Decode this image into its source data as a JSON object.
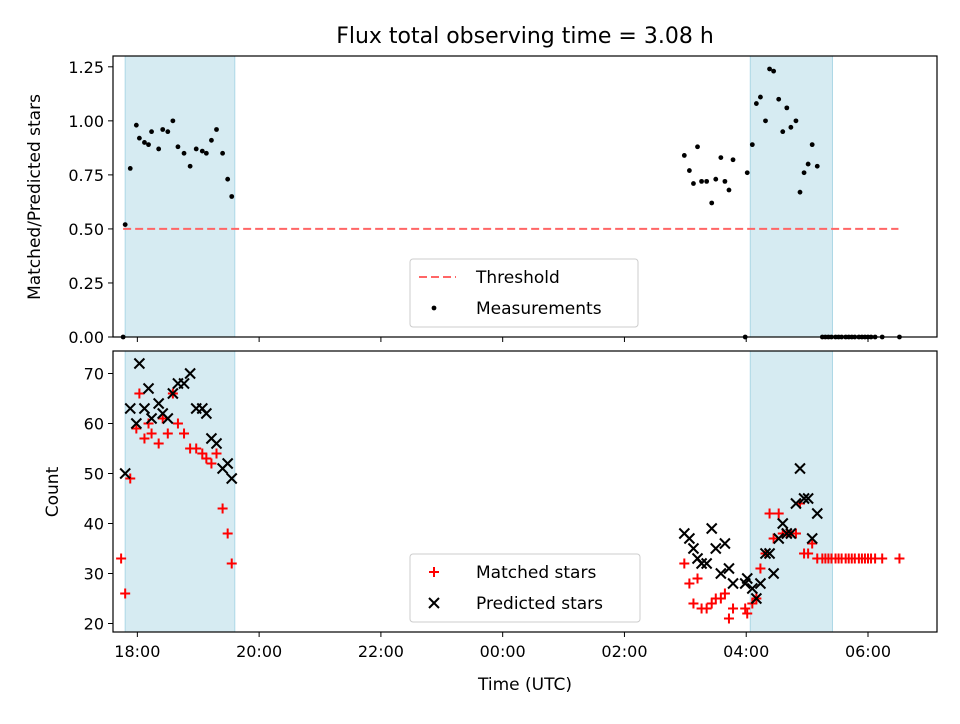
{
  "title": "Flux total observing time = 3.08 h",
  "colors": {
    "band": "#add8e6",
    "matched": "#ff0000",
    "predicted": "#000000",
    "threshold": "#ff6666",
    "measurement": "#000000"
  },
  "chart_data": [
    {
      "type": "scatter",
      "ylabel": "Matched/Predicted stars",
      "ylim": [
        0,
        1.3
      ],
      "yticks": [
        "0.00",
        "0.25",
        "0.50",
        "0.75",
        "1.00",
        "1.25"
      ],
      "ytick_values": [
        0,
        0.25,
        0.5,
        0.75,
        1.0,
        1.25
      ],
      "xlim": [
        "17:36",
        "07:08"
      ],
      "shaded_intervals": [
        [
          "17:48",
          "19:36"
        ],
        [
          "04:04",
          "05:25"
        ]
      ],
      "threshold": {
        "name": "Threshold",
        "value": 0.5,
        "x": [
          "17:46",
          "06:30"
        ]
      },
      "legend": {
        "position": "lower center",
        "entries": [
          "Threshold",
          "Measurements"
        ]
      },
      "series": [
        {
          "name": "Measurements",
          "points": [
            [
              "17:46",
              0.0
            ],
            [
              "17:48",
              0.52
            ],
            [
              "17:53",
              0.78
            ],
            [
              "17:59",
              0.98
            ],
            [
              "18:02",
              0.92
            ],
            [
              "18:07",
              0.9
            ],
            [
              "18:11",
              0.89
            ],
            [
              "18:14",
              0.95
            ],
            [
              "18:21",
              0.87
            ],
            [
              "18:25",
              0.96
            ],
            [
              "18:30",
              0.95
            ],
            [
              "18:35",
              1.0
            ],
            [
              "18:40",
              0.88
            ],
            [
              "18:46",
              0.85
            ],
            [
              "18:52",
              0.79
            ],
            [
              "18:58",
              0.87
            ],
            [
              "19:04",
              0.86
            ],
            [
              "19:08",
              0.85
            ],
            [
              "19:13",
              0.91
            ],
            [
              "19:18",
              0.96
            ],
            [
              "19:24",
              0.85
            ],
            [
              "19:29",
              0.73
            ],
            [
              "19:33",
              0.65
            ],
            [
              "02:59",
              0.84
            ],
            [
              "03:04",
              0.77
            ],
            [
              "03:08",
              0.71
            ],
            [
              "03:12",
              0.88
            ],
            [
              "03:16",
              0.72
            ],
            [
              "03:21",
              0.72
            ],
            [
              "03:26",
              0.62
            ],
            [
              "03:30",
              0.73
            ],
            [
              "03:35",
              0.83
            ],
            [
              "03:39",
              0.72
            ],
            [
              "03:43",
              0.68
            ],
            [
              "03:47",
              0.82
            ],
            [
              "03:59",
              0.0
            ],
            [
              "04:01",
              0.76
            ],
            [
              "04:06",
              0.89
            ],
            [
              "04:10",
              1.08
            ],
            [
              "04:14",
              1.11
            ],
            [
              "04:19",
              1.0
            ],
            [
              "04:23",
              1.24
            ],
            [
              "04:27",
              1.23
            ],
            [
              "04:32",
              1.1
            ],
            [
              "04:36",
              0.95
            ],
            [
              "04:40",
              1.06
            ],
            [
              "04:44",
              0.97
            ],
            [
              "04:49",
              1.0
            ],
            [
              "04:53",
              0.67
            ],
            [
              "04:57",
              0.76
            ],
            [
              "05:01",
              0.8
            ],
            [
              "05:05",
              0.89
            ],
            [
              "05:10",
              0.79
            ],
            [
              "05:15",
              0.0
            ],
            [
              "05:18",
              0.0
            ],
            [
              "05:21",
              0.0
            ],
            [
              "05:24",
              0.0
            ],
            [
              "05:28",
              0.0
            ],
            [
              "05:31",
              0.0
            ],
            [
              "05:34",
              0.0
            ],
            [
              "05:38",
              0.0
            ],
            [
              "05:41",
              0.0
            ],
            [
              "05:44",
              0.0
            ],
            [
              "05:47",
              0.0
            ],
            [
              "05:51",
              0.0
            ],
            [
              "05:54",
              0.0
            ],
            [
              "05:57",
              0.0
            ],
            [
              "06:00",
              0.0
            ],
            [
              "06:03",
              0.0
            ],
            [
              "06:07",
              0.0
            ],
            [
              "06:14",
              0.0
            ],
            [
              "06:31",
              0.0
            ]
          ]
        }
      ]
    },
    {
      "type": "scatter",
      "ylabel": "Count",
      "xlabel": "Time (UTC)",
      "ylim": [
        18.3,
        74.5
      ],
      "yticks": [
        "20",
        "30",
        "40",
        "50",
        "60",
        "70"
      ],
      "ytick_values": [
        20,
        30,
        40,
        50,
        60,
        70
      ],
      "xlim": [
        "17:36",
        "07:08"
      ],
      "xticks": [
        "18:00",
        "20:00",
        "22:00",
        "00:00",
        "02:00",
        "04:00",
        "06:00"
      ],
      "shaded_intervals": [
        [
          "17:48",
          "19:36"
        ],
        [
          "04:04",
          "05:25"
        ]
      ],
      "legend": {
        "position": "lower center",
        "entries": [
          "Matched stars",
          "Predicted stars"
        ]
      },
      "series": [
        {
          "name": "Matched stars",
          "marker": "+",
          "points": [
            [
              "17:44",
              33
            ],
            [
              "17:48",
              26
            ],
            [
              "17:53",
              49
            ],
            [
              "17:59",
              59
            ],
            [
              "18:02",
              66
            ],
            [
              "18:07",
              57
            ],
            [
              "18:11",
              60
            ],
            [
              "18:14",
              58
            ],
            [
              "18:21",
              56
            ],
            [
              "18:25",
              61
            ],
            [
              "18:30",
              58
            ],
            [
              "18:35",
              66
            ],
            [
              "18:40",
              60
            ],
            [
              "18:46",
              58
            ],
            [
              "18:52",
              55
            ],
            [
              "18:58",
              55
            ],
            [
              "19:04",
              54
            ],
            [
              "19:08",
              53
            ],
            [
              "19:13",
              52
            ],
            [
              "19:18",
              54
            ],
            [
              "19:24",
              43
            ],
            [
              "19:29",
              38
            ],
            [
              "19:33",
              32
            ],
            [
              "02:59",
              32
            ],
            [
              "03:04",
              28
            ],
            [
              "03:08",
              24
            ],
            [
              "03:12",
              29
            ],
            [
              "03:16",
              23
            ],
            [
              "03:21",
              23
            ],
            [
              "03:26",
              24
            ],
            [
              "03:30",
              25
            ],
            [
              "03:35",
              25
            ],
            [
              "03:39",
              26
            ],
            [
              "03:43",
              21
            ],
            [
              "03:47",
              23
            ],
            [
              "03:59",
              23
            ],
            [
              "04:01",
              22
            ],
            [
              "04:06",
              24
            ],
            [
              "04:10",
              25
            ],
            [
              "04:14",
              31
            ],
            [
              "04:19",
              34
            ],
            [
              "04:23",
              42
            ],
            [
              "04:27",
              37
            ],
            [
              "04:32",
              42
            ],
            [
              "04:36",
              38
            ],
            [
              "04:40",
              38
            ],
            [
              "04:44",
              38
            ],
            [
              "04:49",
              38
            ],
            [
              "04:53",
              44
            ],
            [
              "04:57",
              34
            ],
            [
              "05:01",
              34
            ],
            [
              "05:05",
              36
            ],
            [
              "05:10",
              33
            ],
            [
              "05:15",
              33
            ],
            [
              "05:18",
              33
            ],
            [
              "05:21",
              33
            ],
            [
              "05:24",
              33
            ],
            [
              "05:28",
              33
            ],
            [
              "05:31",
              33
            ],
            [
              "05:34",
              33
            ],
            [
              "05:38",
              33
            ],
            [
              "05:41",
              33
            ],
            [
              "05:44",
              33
            ],
            [
              "05:47",
              33
            ],
            [
              "05:51",
              33
            ],
            [
              "05:54",
              33
            ],
            [
              "05:57",
              33
            ],
            [
              "06:00",
              33
            ],
            [
              "06:03",
              33
            ],
            [
              "06:07",
              33
            ],
            [
              "06:14",
              33
            ],
            [
              "06:31",
              33
            ]
          ]
        },
        {
          "name": "Predicted stars",
          "marker": "x",
          "points": [
            [
              "17:48",
              50
            ],
            [
              "17:53",
              63
            ],
            [
              "17:59",
              60
            ],
            [
              "18:02",
              72
            ],
            [
              "18:07",
              63
            ],
            [
              "18:11",
              67
            ],
            [
              "18:14",
              61
            ],
            [
              "18:21",
              64
            ],
            [
              "18:25",
              62
            ],
            [
              "18:30",
              61
            ],
            [
              "18:35",
              66
            ],
            [
              "18:40",
              68
            ],
            [
              "18:46",
              68
            ],
            [
              "18:52",
              70
            ],
            [
              "18:58",
              63
            ],
            [
              "19:04",
              63
            ],
            [
              "19:08",
              62
            ],
            [
              "19:13",
              57
            ],
            [
              "19:18",
              56
            ],
            [
              "19:24",
              51
            ],
            [
              "19:29",
              52
            ],
            [
              "19:33",
              49
            ],
            [
              "02:59",
              38
            ],
            [
              "03:04",
              37
            ],
            [
              "03:08",
              35
            ],
            [
              "03:12",
              33
            ],
            [
              "03:16",
              32
            ],
            [
              "03:21",
              32
            ],
            [
              "03:26",
              39
            ],
            [
              "03:30",
              35
            ],
            [
              "03:35",
              30
            ],
            [
              "03:39",
              36
            ],
            [
              "03:43",
              31
            ],
            [
              "03:47",
              28
            ],
            [
              "03:59",
              28
            ],
            [
              "04:01",
              29
            ],
            [
              "04:06",
              27
            ],
            [
              "04:10",
              25
            ],
            [
              "04:14",
              28
            ],
            [
              "04:19",
              34
            ],
            [
              "04:23",
              34
            ],
            [
              "04:27",
              30
            ],
            [
              "04:32",
              37
            ],
            [
              "04:36",
              40
            ],
            [
              "04:40",
              38
            ],
            [
              "04:44",
              38
            ],
            [
              "04:49",
              44
            ],
            [
              "04:53",
              51
            ],
            [
              "04:57",
              45
            ],
            [
              "05:01",
              45
            ],
            [
              "05:05",
              37
            ],
            [
              "05:10",
              42
            ]
          ]
        }
      ]
    }
  ]
}
